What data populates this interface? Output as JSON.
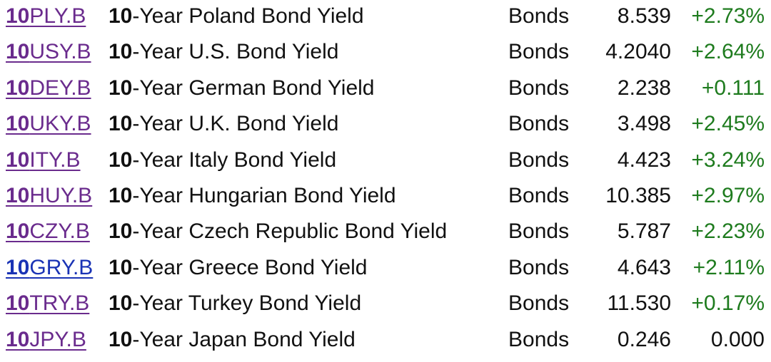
{
  "colors": {
    "visited_link": "#6a2b8d",
    "unvisited_link": "#1a33b5",
    "positive": "#1e7b1e",
    "text": "#111111"
  },
  "rows": [
    {
      "symbol_num": "10",
      "symbol_rest": "PLY.B",
      "name_num": "10",
      "name_rest": "-Year Poland Bond Yield",
      "type": "Bonds",
      "price": "8.539",
      "change": "+2.73%",
      "visited": true,
      "change_style": "pos"
    },
    {
      "symbol_num": "10",
      "symbol_rest": "USY.B",
      "name_num": "10",
      "name_rest": "-Year U.S. Bond Yield",
      "type": "Bonds",
      "price": "4.2040",
      "change": "+2.64%",
      "visited": true,
      "change_style": "pos"
    },
    {
      "symbol_num": "10",
      "symbol_rest": "DEY.B",
      "name_num": "10",
      "name_rest": "-Year German Bond Yield",
      "type": "Bonds",
      "price": "2.238",
      "change": "+0.111",
      "visited": true,
      "change_style": "pos"
    },
    {
      "symbol_num": "10",
      "symbol_rest": "UKY.B",
      "name_num": "10",
      "name_rest": "-Year U.K. Bond Yield",
      "type": "Bonds",
      "price": "3.498",
      "change": "+2.45%",
      "visited": true,
      "change_style": "pos"
    },
    {
      "symbol_num": "10",
      "symbol_rest": "ITY.B",
      "name_num": "10",
      "name_rest": "-Year Italy Bond Yield",
      "type": "Bonds",
      "price": "4.423",
      "change": "+3.24%",
      "visited": true,
      "change_style": "pos"
    },
    {
      "symbol_num": "10",
      "symbol_rest": "HUY.B",
      "name_num": "10",
      "name_rest": "-Year Hungarian Bond Yield",
      "type": "Bonds",
      "price": "10.385",
      "change": "+2.97%",
      "visited": true,
      "change_style": "pos"
    },
    {
      "symbol_num": "10",
      "symbol_rest": "CZY.B",
      "name_num": "10",
      "name_rest": "-Year Czech Republic Bond Yield",
      "type": "Bonds",
      "price": "5.787",
      "change": "+2.23%",
      "visited": true,
      "change_style": "pos"
    },
    {
      "symbol_num": "10",
      "symbol_rest": "GRY.B",
      "name_num": "10",
      "name_rest": "-Year Greece Bond Yield",
      "type": "Bonds",
      "price": "4.643",
      "change": "+2.11%",
      "visited": false,
      "change_style": "pos"
    },
    {
      "symbol_num": "10",
      "symbol_rest": "TRY.B",
      "name_num": "10",
      "name_rest": "-Year Turkey Bond Yield",
      "type": "Bonds",
      "price": "11.530",
      "change": "+0.17%",
      "visited": true,
      "change_style": "pos"
    },
    {
      "symbol_num": "10",
      "symbol_rest": "JPY.B",
      "name_num": "10",
      "name_rest": "-Year Japan Bond Yield",
      "type": "Bonds",
      "price": "0.246",
      "change": "0.000",
      "visited": true,
      "change_style": "neutral"
    }
  ]
}
